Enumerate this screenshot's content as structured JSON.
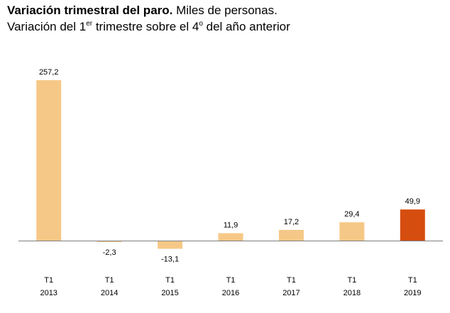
{
  "title": {
    "bold": "Variación trimestral del paro.",
    "rest": "Miles de personas."
  },
  "subtitle": {
    "part1": "Variación del 1",
    "sup1": "er",
    "part2": " trimestre sobre el 4",
    "sup2": "o",
    "part3": " del año anterior"
  },
  "chart_data": {
    "type": "bar",
    "categories": [
      [
        "T1",
        "2013"
      ],
      [
        "T1",
        "2014"
      ],
      [
        "T1",
        "2015"
      ],
      [
        "T1",
        "2016"
      ],
      [
        "T1",
        "2017"
      ],
      [
        "T1",
        "2018"
      ],
      [
        "T1",
        "2019"
      ]
    ],
    "values": [
      257.2,
      -2.3,
      -13.1,
      11.9,
      17.2,
      29.4,
      49.9
    ],
    "value_labels": [
      "257,2",
      "-2,3",
      "-13,1",
      "11,9",
      "17,2",
      "29,4",
      "49,9"
    ],
    "colors": [
      "#F6C887",
      "#F6C887",
      "#F6C887",
      "#F6C887",
      "#F6C887",
      "#F6C887",
      "#D54D0F"
    ],
    "axis_color": "#7F7F7F",
    "grid": false,
    "legend": "none"
  }
}
